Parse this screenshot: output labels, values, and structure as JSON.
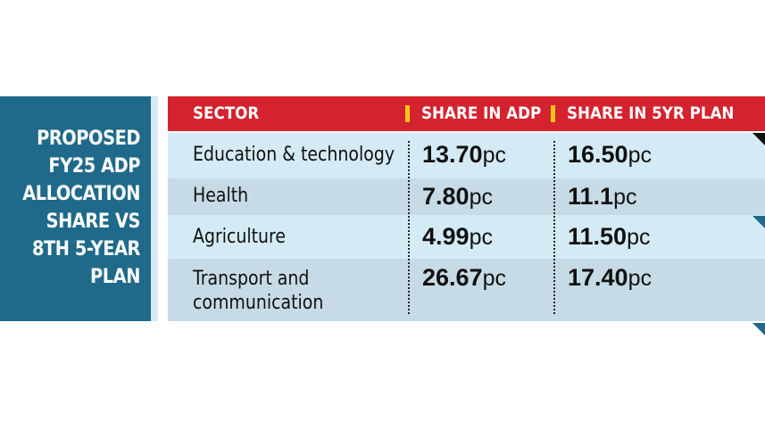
{
  "title_lines": [
    "PROPOSED",
    "FY25 ADP",
    "ALLOCATION",
    "SHARE VS",
    "8TH 5-YEAR",
    "PLAN"
  ],
  "chart_data": {
    "type": "table",
    "columns": [
      "SECTOR",
      "SHARE IN ADP",
      "SHARE IN 5YR PLAN"
    ],
    "unit": "pc",
    "rows": [
      {
        "sector_lines": [
          "Education & technology"
        ],
        "adp": "13.70",
        "plan": "16.50"
      },
      {
        "sector_lines": [
          "Health"
        ],
        "adp": "7.80",
        "plan": "11.1"
      },
      {
        "sector_lines": [
          "Agriculture"
        ],
        "adp": "4.99",
        "plan": "11.50"
      },
      {
        "sector_lines": [
          "Transport and",
          "communication"
        ],
        "adp": "26.67",
        "plan": "17.40"
      }
    ]
  },
  "colors": {
    "title_bg": "#1f6a8a",
    "header_bg": "#d4232e",
    "header_separator": "#f4c518",
    "row_light": "#d4ebf5",
    "row_dark": "#c6dbe6"
  }
}
